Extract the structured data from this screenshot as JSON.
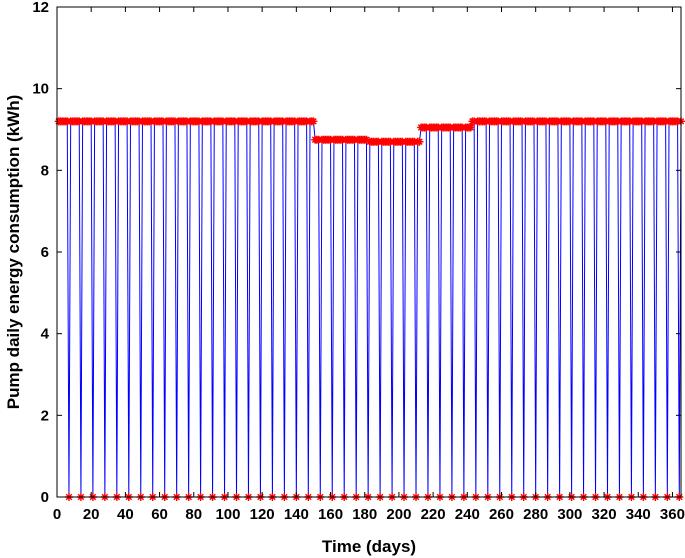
{
  "chart_data": {
    "type": "line",
    "title": "",
    "xlabel": "Time (days)",
    "ylabel": "Pump daily energy consumption (kWh)",
    "xlim": [
      0,
      365
    ],
    "ylim": [
      0,
      12
    ],
    "xticks": [
      0,
      20,
      40,
      60,
      80,
      100,
      120,
      140,
      160,
      180,
      200,
      220,
      240,
      260,
      280,
      300,
      320,
      340,
      360
    ],
    "yticks": [
      0,
      2,
      4,
      6,
      8,
      10,
      12
    ],
    "grid": false,
    "legend": "none",
    "line_color": "#0000ff",
    "marker_color": "#ff0000",
    "marker": "asterisk",
    "off_days": [
      7,
      14,
      21,
      28,
      35,
      42,
      49,
      56,
      63,
      70,
      77,
      84,
      91,
      98,
      105,
      112,
      119,
      126,
      133,
      140,
      147,
      154,
      161,
      168,
      175,
      182,
      189,
      196,
      203,
      210,
      217,
      224,
      231,
      238,
      245,
      252,
      259,
      266,
      273,
      280,
      287,
      294,
      301,
      308,
      315,
      322,
      329,
      336,
      343,
      350,
      357,
      364
    ],
    "off_value": 0,
    "on_segments": [
      {
        "from": 1,
        "to": 150,
        "value": 9.2
      },
      {
        "from": 151,
        "to": 181,
        "value": 8.75
      },
      {
        "from": 182,
        "to": 212,
        "value": 8.7
      },
      {
        "from": 213,
        "to": 242,
        "value": 9.05
      },
      {
        "from": 243,
        "to": 365,
        "value": 9.2
      }
    ]
  }
}
